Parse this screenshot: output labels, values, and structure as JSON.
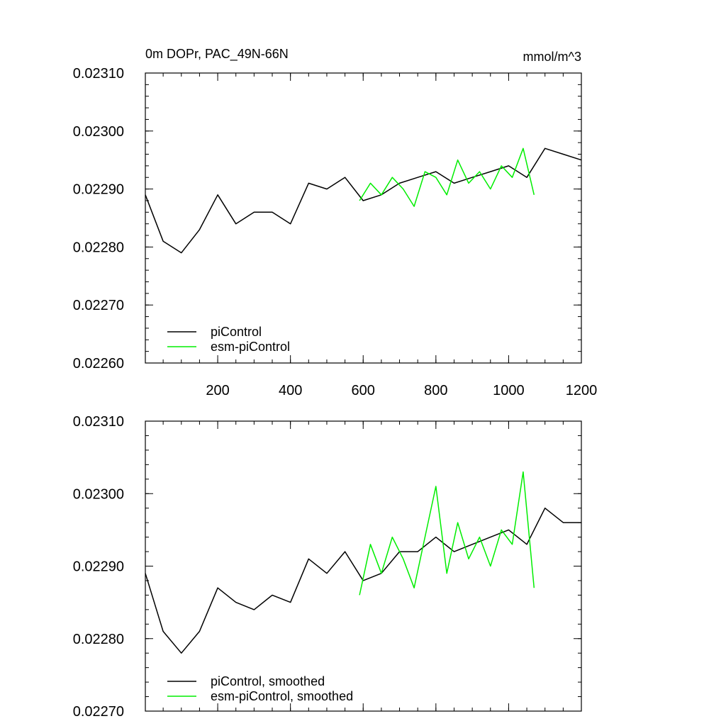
{
  "chart_data": [
    {
      "type": "line",
      "title": "0m DOPr, PAC_49N-66N",
      "units": "mmol/m^3",
      "xlabel": "",
      "ylabel": "",
      "xlim": [
        1,
        1200
      ],
      "ylim": [
        0.0226,
        0.0231
      ],
      "xticks": [
        200,
        400,
        600,
        800,
        1000,
        1200
      ],
      "xtick_labels": [
        "200",
        "400",
        "600",
        "800",
        "1000",
        "1200"
      ],
      "yticks": [
        0.0226,
        0.0227,
        0.0228,
        0.0229,
        0.023,
        0.0231
      ],
      "ytick_labels": [
        "0.02260",
        "0.02270",
        "0.02280",
        "0.02290",
        "0.02300",
        "0.02310"
      ],
      "grid": false,
      "legend_position": "bottom-left",
      "series": [
        {
          "name": "piControl",
          "color": "#000000",
          "x": [
            1,
            50,
            100,
            150,
            200,
            250,
            300,
            350,
            400,
            450,
            500,
            550,
            600,
            650,
            700,
            750,
            800,
            850,
            900,
            950,
            1000,
            1050,
            1100,
            1150,
            1200
          ],
          "y": [
            0.02289,
            0.02281,
            0.02279,
            0.02283,
            0.02289,
            0.02284,
            0.02286,
            0.02286,
            0.02284,
            0.02291,
            0.0229,
            0.02292,
            0.02288,
            0.02289,
            0.02291,
            0.02292,
            0.02293,
            0.02291,
            0.02292,
            0.02293,
            0.02294,
            0.02292,
            0.02297,
            0.02296,
            0.02295
          ]
        },
        {
          "name": "esm-piControl",
          "color": "#00ee00",
          "x": [
            590,
            620,
            650,
            680,
            710,
            740,
            770,
            800,
            830,
            860,
            890,
            920,
            950,
            980,
            1010,
            1040,
            1070
          ],
          "y": [
            0.02288,
            0.02291,
            0.02289,
            0.02292,
            0.0229,
            0.02287,
            0.02293,
            0.02292,
            0.02289,
            0.02295,
            0.02291,
            0.02293,
            0.0229,
            0.02294,
            0.02292,
            0.02297,
            0.02289
          ]
        }
      ]
    },
    {
      "type": "line",
      "title": "",
      "xlabel": "",
      "ylabel": "",
      "xlim": [
        1,
        1200
      ],
      "ylim": [
        0.0227,
        0.0231
      ],
      "xticks": [
        200,
        400,
        600,
        800,
        1000,
        1200
      ],
      "xtick_labels": [],
      "yticks": [
        0.0227,
        0.0228,
        0.0229,
        0.023,
        0.0231
      ],
      "ytick_labels": [
        "0.02270",
        "0.02280",
        "0.02290",
        "0.02300",
        "0.02310"
      ],
      "grid": false,
      "legend_position": "bottom-left",
      "series": [
        {
          "name": "piControl, smoothed",
          "color": "#000000",
          "x": [
            1,
            50,
            100,
            150,
            200,
            250,
            300,
            350,
            400,
            450,
            500,
            550,
            600,
            650,
            700,
            750,
            800,
            850,
            900,
            950,
            1000,
            1050,
            1100,
            1150,
            1200
          ],
          "y": [
            0.02289,
            0.02281,
            0.02278,
            0.02281,
            0.02287,
            0.02285,
            0.02284,
            0.02286,
            0.02285,
            0.02291,
            0.02289,
            0.02292,
            0.02288,
            0.02289,
            0.02292,
            0.02292,
            0.02294,
            0.02292,
            0.02293,
            0.02294,
            0.02295,
            0.02293,
            0.02298,
            0.02296,
            0.02296
          ]
        },
        {
          "name": "esm-piControl, smoothed",
          "color": "#00ee00",
          "x": [
            590,
            620,
            650,
            680,
            710,
            740,
            770,
            800,
            830,
            860,
            890,
            920,
            950,
            980,
            1010,
            1040,
            1070
          ],
          "y": [
            0.02286,
            0.02293,
            0.02289,
            0.02294,
            0.02291,
            0.02287,
            0.02294,
            0.02301,
            0.02289,
            0.02296,
            0.02291,
            0.02294,
            0.0229,
            0.02295,
            0.02293,
            0.02303,
            0.02287
          ]
        }
      ]
    }
  ]
}
